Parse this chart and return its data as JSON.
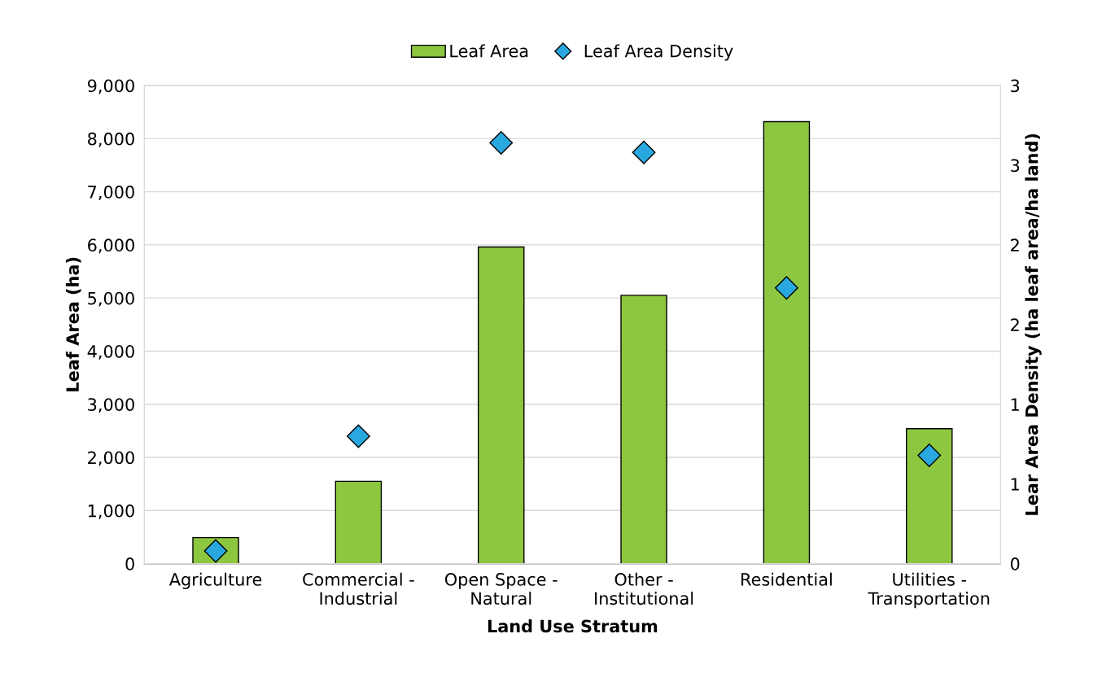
{
  "chart_data": {
    "type": "bar",
    "xlabel": "Land Use Stratum",
    "ylabel": "Leaf Area (ha)",
    "y2label": "Lear Area Density (ha leaf area/ha land)",
    "categories": [
      "Agriculture",
      "Commercial -\nIndustrial",
      "Open Space -\nNatural",
      "Other -\nInstitutional",
      "Residential",
      "Utilities -\nTransportation"
    ],
    "series": [
      {
        "name": "Leaf Area",
        "color": "#8dc63f",
        "values": [
          490,
          1550,
          5960,
          5050,
          8320,
          2540
        ]
      },
      {
        "name": "Leaf Area Density",
        "type": "scatter",
        "axis": "y2",
        "marker": "diamond",
        "color": "#29a8e0",
        "values": [
          0.08,
          0.8,
          2.64,
          2.58,
          1.73,
          0.68
        ]
      }
    ],
    "ylim": [
      0,
      9000
    ],
    "yticks": [
      {
        "value": 0,
        "label": "0"
      },
      {
        "value": 1000,
        "label": "1,000"
      },
      {
        "value": 2000,
        "label": "2,000"
      },
      {
        "value": 3000,
        "label": "3,000"
      },
      {
        "value": 4000,
        "label": "4,000"
      },
      {
        "value": 5000,
        "label": "5,000"
      },
      {
        "value": 6000,
        "label": "6,000"
      },
      {
        "value": 7000,
        "label": "7,000"
      },
      {
        "value": 8000,
        "label": "8,000"
      },
      {
        "value": 9000,
        "label": "9,000"
      }
    ],
    "y2lim": [
      0,
      3
    ],
    "y2ticks": [
      0,
      {
        "value": 0.5,
        "label": "1"
      },
      1,
      {
        "value": 1.5,
        "label": "2"
      },
      2,
      {
        "value": 2.5,
        "label": "3"
      },
      3
    ],
    "grid": "y",
    "legend": "top"
  }
}
